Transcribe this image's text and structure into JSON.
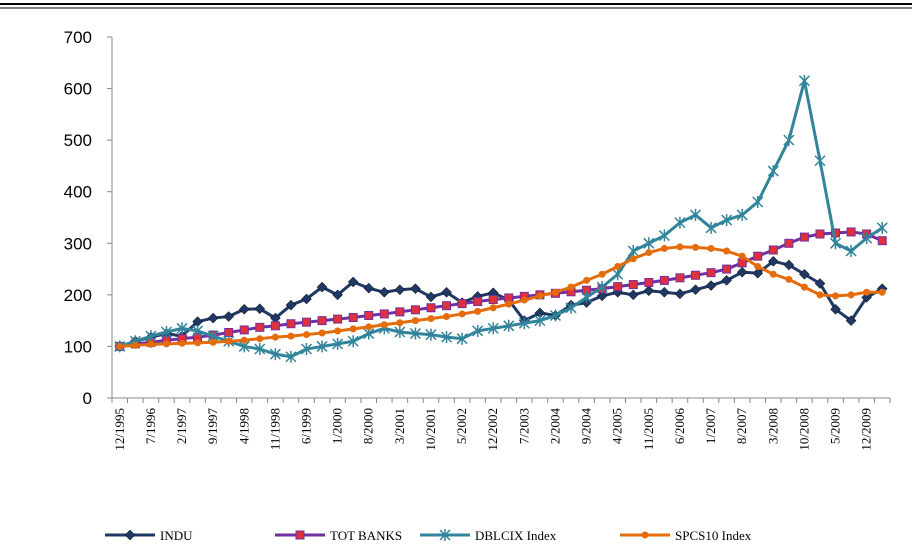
{
  "chart_data": {
    "type": "line",
    "categories": [
      "12/1995",
      null,
      "7/1996",
      null,
      "2/1997",
      null,
      "9/1997",
      null,
      "4/1998",
      null,
      "11/1998",
      null,
      "6/1999",
      null,
      "1/2000",
      null,
      "8/2000",
      null,
      "3/2001",
      null,
      "10/2001",
      null,
      "5/2002",
      null,
      "12/2002",
      null,
      "7/2003",
      null,
      "2/2004",
      null,
      "9/2004",
      null,
      "4/2005",
      null,
      "11/2005",
      null,
      "6/2006",
      null,
      "1/2007",
      null,
      "8/2007",
      null,
      "3/2008",
      null,
      "10/2008",
      null,
      "5/2009",
      null,
      "12/2009",
      null
    ],
    "ylim": [
      0,
      700
    ],
    "yticks": [
      0,
      100,
      200,
      300,
      400,
      500,
      600,
      700
    ],
    "series": [
      {
        "name": "INDU",
        "color": "#1f3864",
        "marker": "diamond",
        "marker_color": "#1f3864",
        "values": [
          100,
          110,
          118,
          125,
          120,
          148,
          155,
          158,
          172,
          173,
          155,
          180,
          192,
          215,
          200,
          225,
          213,
          205,
          210,
          212,
          196,
          205,
          185,
          197,
          204,
          190,
          150,
          165,
          160,
          180,
          185,
          198,
          205,
          200,
          208,
          205,
          202,
          210,
          218,
          228,
          244,
          242,
          265,
          258,
          240,
          222,
          172,
          150,
          195,
          212
        ]
      },
      {
        "name": "TOT BANKS",
        "color": "#7030a0",
        "marker": "square",
        "marker_color": "#e0303c",
        "values": [
          100,
          105,
          108,
          112,
          115,
          118,
          122,
          127,
          132,
          137,
          140,
          144,
          147,
          150,
          153,
          156,
          160,
          163,
          167,
          171,
          175,
          179,
          183,
          187,
          191,
          194,
          197,
          200,
          203,
          206,
          209,
          212,
          216,
          220,
          224,
          228,
          233,
          238,
          243,
          250,
          262,
          275,
          287,
          300,
          312,
          318,
          320,
          322,
          318,
          305
        ]
      },
      {
        "name": "DBLCIX Index",
        "color": "#31849b",
        "marker": "asterisk",
        "marker_color": "#31849b",
        "values": [
          100,
          110,
          120,
          128,
          135,
          130,
          120,
          110,
          100,
          95,
          85,
          80,
          95,
          100,
          105,
          110,
          125,
          135,
          128,
          125,
          123,
          118,
          115,
          130,
          135,
          140,
          145,
          150,
          160,
          175,
          195,
          215,
          240,
          285,
          300,
          315,
          340,
          355,
          330,
          345,
          355,
          380,
          440,
          500,
          615,
          460,
          300,
          285,
          310,
          330
        ]
      },
      {
        "name": "SPCS10 Index",
        "color": "#e46c0a",
        "marker": "circle",
        "marker_color": "#e46c0a",
        "values": [
          100,
          102,
          104,
          105,
          106,
          107,
          108,
          110,
          112,
          115,
          118,
          120,
          123,
          126,
          130,
          134,
          138,
          142,
          146,
          150,
          154,
          158,
          163,
          168,
          175,
          182,
          190,
          198,
          205,
          215,
          228,
          240,
          255,
          270,
          282,
          290,
          293,
          292,
          290,
          285,
          275,
          255,
          240,
          230,
          215,
          200,
          198,
          200,
          205,
          205
        ]
      }
    ]
  }
}
